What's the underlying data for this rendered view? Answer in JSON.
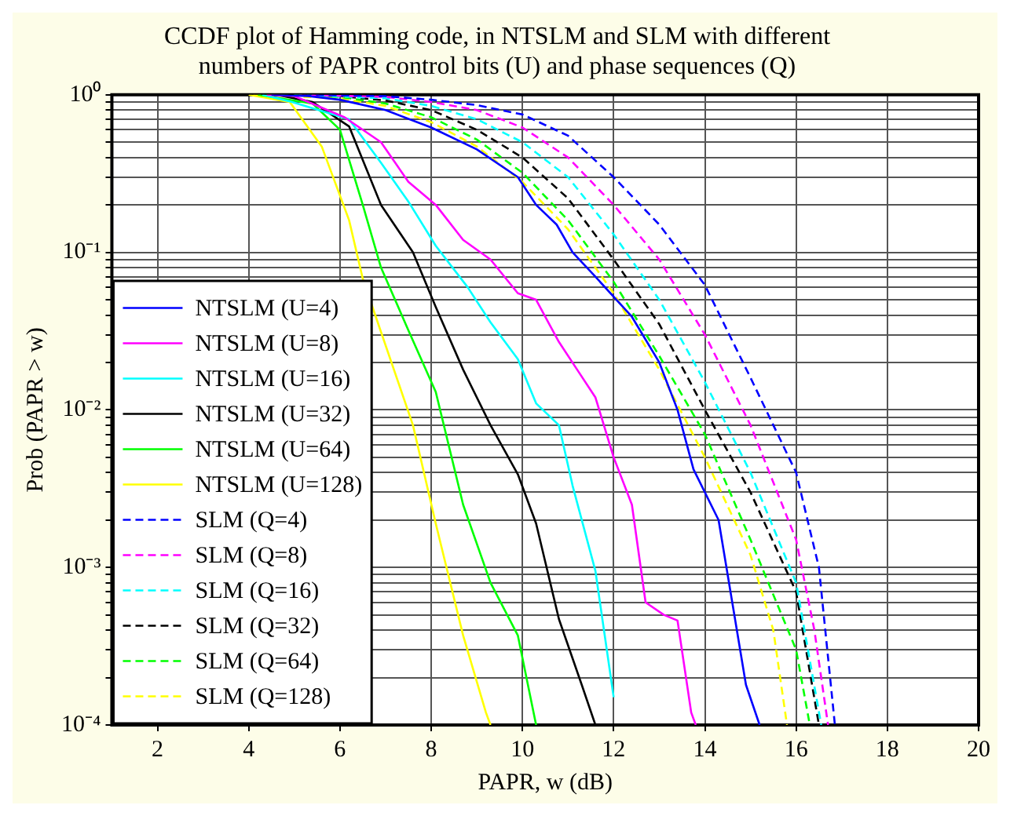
{
  "chart_data": {
    "type": "line",
    "title": "CCDF plot of Hamming code, in NTSLM and SLM with different numbers of PAPR control bits (U) and phase sequences (Q)",
    "xlabel": "PAPR, w (dB)",
    "ylabel": "Prob (PAPR > w)",
    "log": "y",
    "grid": true,
    "legend": "bottom left",
    "xlim": [
      1,
      20
    ],
    "xticks": [
      2,
      4,
      6,
      8,
      10,
      12,
      14,
      16,
      18,
      20
    ],
    "ylim": [
      0.0001,
      1
    ],
    "yticks": [
      {
        "value": 0.0001,
        "label": "10⁻⁴"
      },
      {
        "value": 0.0002,
        "label": null
      },
      {
        "value": 0.0003,
        "label": null
      },
      {
        "value": 0.0004,
        "label": null
      },
      {
        "value": 0.0005,
        "label": null
      },
      {
        "value": 0.0006,
        "label": null
      },
      {
        "value": 0.0007,
        "label": null
      },
      {
        "value": 0.0008,
        "label": null
      },
      {
        "value": 0.0009,
        "label": null
      },
      {
        "value": 0.001,
        "label": "10⁻³"
      },
      {
        "value": 0.002,
        "label": null
      },
      {
        "value": 0.003,
        "label": null
      },
      {
        "value": 0.004,
        "label": null
      },
      {
        "value": 0.005,
        "label": null
      },
      {
        "value": 0.006,
        "label": null
      },
      {
        "value": 0.007,
        "label": null
      },
      {
        "value": 0.008,
        "label": null
      },
      {
        "value": 0.009,
        "label": null
      },
      {
        "value": 0.01,
        "label": "10⁻²"
      },
      {
        "value": 0.02,
        "label": null
      },
      {
        "value": 0.03,
        "label": null
      },
      {
        "value": 0.04,
        "label": null
      },
      {
        "value": 0.05,
        "label": null
      },
      {
        "value": 0.06,
        "label": null
      },
      {
        "value": 0.07,
        "label": null
      },
      {
        "value": 0.08,
        "label": null
      },
      {
        "value": 0.09,
        "label": null
      },
      {
        "value": 0.1,
        "label": "10⁻¹"
      },
      {
        "value": 0.2,
        "label": null
      },
      {
        "value": 0.3,
        "label": null
      },
      {
        "value": 0.4,
        "label": null
      },
      {
        "value": 0.5,
        "label": null
      },
      {
        "value": 0.6,
        "label": null
      },
      {
        "value": 0.7,
        "label": null
      },
      {
        "value": 0.8,
        "label": null
      },
      {
        "value": 0.9,
        "label": null
      },
      {
        "value": 1,
        "label": "10⁰"
      }
    ],
    "series": [
      {
        "name": "NTSLM (U=4)",
        "color": "#0000ff",
        "line_style": "solid",
        "x": [
          4.5,
          5.3,
          6,
          7,
          8,
          9,
          9.9,
          10.3,
          10.75,
          11.1,
          11.6,
          12.4,
          13,
          13.4,
          13.75,
          14.3,
          14.6,
          14.9,
          15.2
        ],
        "values": [
          1,
          0.98,
          0.93,
          0.8,
          0.62,
          0.45,
          0.3,
          0.2,
          0.15,
          0.1,
          0.07,
          0.039,
          0.02,
          0.01,
          0.0042,
          0.002,
          0.0006,
          0.00018,
          0.0001
        ]
      },
      {
        "name": "NTSLM (U=8)",
        "color": "#ff00ff",
        "line_style": "solid",
        "x": [
          4.4,
          5,
          6.1,
          6.9,
          7.5,
          8.1,
          8.7,
          9.3,
          9.9,
          10.3,
          10.8,
          11.2,
          11.6,
          12,
          12.4,
          12.7,
          13.1,
          13.4,
          13.7,
          13.8
        ],
        "values": [
          1,
          0.98,
          0.72,
          0.5,
          0.28,
          0.2,
          0.12,
          0.09,
          0.055,
          0.05,
          0.027,
          0.018,
          0.012,
          0.005,
          0.0025,
          0.0006,
          0.0005,
          0.00046,
          0.00012,
          0.0001
        ]
      },
      {
        "name": "NTSLM (U=16)",
        "color": "#00ffff",
        "line_style": "solid",
        "x": [
          4.3,
          4.95,
          6.2,
          6.9,
          7.5,
          8.1,
          8.8,
          9.3,
          9.9,
          10.3,
          10.8,
          11.1,
          11.6,
          12
        ],
        "values": [
          1,
          0.9,
          0.7,
          0.37,
          0.21,
          0.11,
          0.06,
          0.036,
          0.021,
          0.011,
          0.008,
          0.0033,
          0.00095,
          0.00015
        ]
      },
      {
        "name": "NTSLM (U=32)",
        "color": "#000000",
        "line_style": "solid",
        "x": [
          4.6,
          5.4,
          6.2,
          6.9,
          7.6,
          8.1,
          8.7,
          9.3,
          9.9,
          10.3,
          10.8,
          11.3,
          11.6
        ],
        "values": [
          1,
          0.9,
          0.63,
          0.2,
          0.1,
          0.045,
          0.018,
          0.008,
          0.0039,
          0.0019,
          0.00047,
          0.00018,
          0.0001
        ]
      },
      {
        "name": "NTSLM (U=64)",
        "color": "#00ff00",
        "line_style": "solid",
        "x": [
          4.2,
          5.4,
          6,
          6.5,
          6.9,
          7.5,
          8.1,
          8.7,
          9.3,
          9.9,
          10.3
        ],
        "values": [
          1,
          0.88,
          0.6,
          0.2,
          0.08,
          0.032,
          0.013,
          0.0025,
          0.0008,
          0.00037,
          0.0001
        ]
      },
      {
        "name": "NTSLM (U=128)",
        "color": "#ffff00",
        "line_style": "solid",
        "x": [
          4,
          4.9,
          5.6,
          6.2,
          6.5,
          7.6,
          8.1,
          8.7,
          9.2,
          9.3
        ],
        "values": [
          1,
          0.9,
          0.47,
          0.16,
          0.068,
          0.008,
          0.0019,
          0.00037,
          0.00012,
          0.0001
        ]
      },
      {
        "name": "SLM (Q=4)",
        "color": "#0000ff",
        "line_style": "dashed",
        "x": [
          5.2,
          7,
          8,
          9,
          10,
          11,
          12,
          13,
          14,
          15,
          16,
          16.5,
          16.85
        ],
        "values": [
          1,
          0.98,
          0.93,
          0.86,
          0.75,
          0.55,
          0.3,
          0.15,
          0.062,
          0.016,
          0.004,
          0.001,
          0.0001
        ]
      },
      {
        "name": "SLM (Q=8)",
        "color": "#ff00ff",
        "line_style": "dashed",
        "x": [
          5.1,
          7,
          8,
          9,
          10,
          11,
          12,
          13,
          14,
          15,
          16,
          16.4,
          16.7
        ],
        "values": [
          1,
          0.97,
          0.9,
          0.8,
          0.62,
          0.4,
          0.2,
          0.09,
          0.03,
          0.008,
          0.0015,
          0.0004,
          0.0001
        ]
      },
      {
        "name": "SLM (Q=16)",
        "color": "#00ffff",
        "line_style": "dashed",
        "x": [
          5,
          7,
          8,
          9,
          10,
          11,
          12,
          13,
          14,
          15,
          16,
          16.55
        ],
        "values": [
          1,
          0.95,
          0.85,
          0.7,
          0.5,
          0.3,
          0.13,
          0.05,
          0.015,
          0.004,
          0.0008,
          0.0001
        ]
      },
      {
        "name": "SLM (Q=32)",
        "color": "#000000",
        "line_style": "dashed",
        "x": [
          4.8,
          6,
          7,
          8,
          9,
          10,
          11,
          12,
          13,
          14,
          15,
          16,
          16.5
        ],
        "values": [
          1,
          0.98,
          0.92,
          0.8,
          0.6,
          0.4,
          0.22,
          0.09,
          0.035,
          0.01,
          0.003,
          0.0007,
          0.0001
        ]
      },
      {
        "name": "SLM (Q=64)",
        "color": "#00ff00",
        "line_style": "dashed",
        "x": [
          4.7,
          6,
          7,
          8,
          9,
          10,
          11,
          12,
          13,
          14,
          15,
          16,
          16.3
        ],
        "values": [
          1,
          0.97,
          0.88,
          0.72,
          0.52,
          0.32,
          0.16,
          0.065,
          0.022,
          0.007,
          0.0015,
          0.0003,
          0.0001
        ]
      },
      {
        "name": "SLM (Q=128)",
        "color": "#ffff00",
        "line_style": "dashed",
        "x": [
          4.1,
          6,
          7,
          8,
          9,
          10,
          11,
          12,
          13,
          14,
          15,
          15.5,
          15.8
        ],
        "values": [
          1,
          0.95,
          0.85,
          0.67,
          0.47,
          0.28,
          0.14,
          0.055,
          0.018,
          0.005,
          0.0012,
          0.0004,
          0.0001
        ]
      }
    ]
  }
}
